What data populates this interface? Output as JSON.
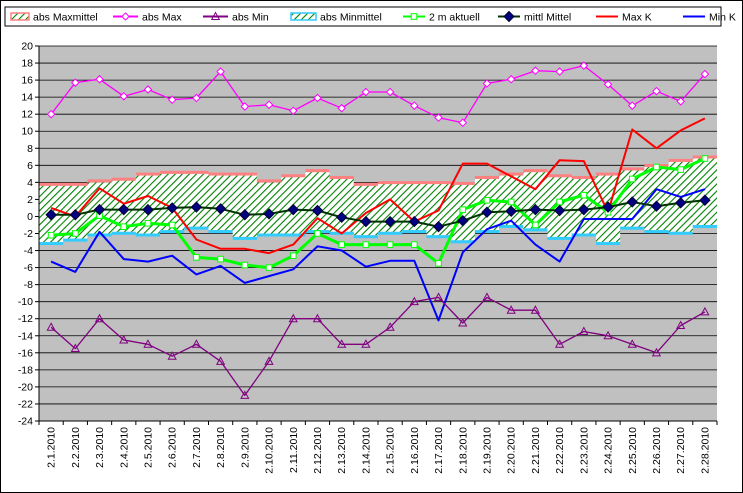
{
  "chart_data": {
    "type": "line",
    "title": "",
    "xlabel": "",
    "ylabel": "",
    "ylim": [
      -24,
      20
    ],
    "ytick_step": 2,
    "grid": true,
    "legend_placement": "top",
    "plot_background": "#c0c0c0",
    "categories": [
      "2.1.2010",
      "2.2.2010",
      "2.3.2010",
      "2.4.2010",
      "2.5.2010",
      "2.6.2010",
      "2.7.2010",
      "2.8.2010",
      "2.9.2010",
      "2.10.2010",
      "2.11.2010",
      "2.12.2010",
      "2.13.2010",
      "2.14.2010",
      "2.15.2010",
      "2.16.2010",
      "2.17.2010",
      "2.18.2010",
      "2.19.2010",
      "2.20.2010",
      "2.21.2010",
      "2.22.2010",
      "2.23.2010",
      "2.24.2010",
      "2.25.2010",
      "2.26.2010",
      "2.27.2010",
      "2.28.2010"
    ],
    "series": [
      {
        "name": "abs Maxmittel",
        "kind": "band-top",
        "color": "#ff8080",
        "values": [
          3.6,
          3.6,
          4.0,
          4.2,
          4.8,
          5.0,
          5.0,
          4.8,
          4.8,
          4.0,
          4.6,
          5.2,
          4.4,
          3.6,
          3.8,
          3.8,
          3.8,
          3.7,
          4.4,
          4.8,
          5.2,
          4.6,
          4.4,
          4.8,
          5.4,
          5.8,
          6.4,
          6.8
        ]
      },
      {
        "name": "abs Max",
        "kind": "line",
        "marker": "diamond-open",
        "color": "#ff00ff",
        "values": [
          12,
          15.7,
          16.1,
          14.1,
          14.9,
          13.7,
          13.9,
          17.0,
          12.9,
          13.1,
          12.4,
          13.9,
          12.7,
          14.6,
          14.6,
          13.0,
          11.6,
          11.0,
          15.6,
          16.1,
          17.1,
          17.0,
          17.7,
          15.5,
          13.0,
          14.7,
          13.5,
          16.7
        ]
      },
      {
        "name": "abs Min",
        "kind": "line",
        "marker": "triangle-open",
        "color": "#800080",
        "values": [
          -13,
          -15.5,
          -12,
          -14.5,
          -15,
          -16.4,
          -15,
          -17,
          -21,
          -17,
          -12,
          -12,
          -15,
          -15,
          -13,
          -10,
          -9.5,
          -12.5,
          -9.5,
          -11,
          -11,
          -15,
          -13.5,
          -14,
          -15,
          -16,
          -12.8,
          -11.2
        ]
      },
      {
        "name": "abs Minmittel",
        "kind": "band-bottom",
        "color": "#33ccff",
        "values": [
          -3.0,
          -2.6,
          -2.0,
          -1.8,
          -2.0,
          -1.6,
          -1.2,
          -1.6,
          -2.4,
          -2.0,
          -2.0,
          -1.6,
          -1.8,
          -2.2,
          -1.8,
          -1.6,
          -2.2,
          -2.8,
          -1.6,
          -1.0,
          -1.4,
          -2.4,
          -2.0,
          -3.0,
          -1.2,
          -1.6,
          -1.8,
          -1.0
        ]
      },
      {
        "name": "2 m aktuell",
        "kind": "line",
        "marker": "square-open",
        "color": "#00ff00",
        "values": [
          -2.2,
          -2.0,
          0.1,
          -1.2,
          -0.8,
          -1.0,
          -4.8,
          -5.0,
          -5.7,
          -6.0,
          -4.6,
          -2.0,
          -3.3,
          -3.3,
          -3.3,
          -3.3,
          -5.5,
          0.8,
          1.9,
          1.7,
          -1.0,
          1.7,
          2.5,
          0.5,
          4.4,
          5.8,
          5.5,
          6.8
        ]
      },
      {
        "name": "mittl Mittel",
        "kind": "line",
        "marker": "diamond-filled",
        "color": "#003300",
        "values": [
          0.2,
          0.2,
          0.8,
          0.8,
          0.8,
          1.0,
          1.1,
          0.9,
          0.2,
          0.3,
          0.8,
          0.7,
          -0.1,
          -0.6,
          -0.6,
          -0.6,
          -1.2,
          -0.5,
          0.5,
          0.6,
          0.8,
          0.7,
          0.8,
          1.1,
          1.7,
          1.2,
          1.6,
          1.9
        ]
      },
      {
        "name": "Max K",
        "kind": "line",
        "marker": "none",
        "color": "#ff0000",
        "values": [
          1.0,
          0.0,
          3.3,
          1.5,
          2.4,
          1.0,
          -2.7,
          -3.8,
          -3.8,
          -4.3,
          -3.3,
          -0.2,
          -2.0,
          0.4,
          2.0,
          -0.6,
          0.7,
          6.2,
          6.2,
          4.7,
          3.2,
          6.6,
          6.5,
          0.5,
          10.2,
          8.0,
          10.1,
          11.5
        ]
      },
      {
        "name": "Min K",
        "kind": "line",
        "marker": "none",
        "color": "#0000ff",
        "values": [
          -5.3,
          -6.5,
          -1.8,
          -5.0,
          -5.3,
          -4.6,
          -6.8,
          -5.8,
          -7.8,
          -7.0,
          -6.2,
          -3.5,
          -4.0,
          -5.9,
          -5.2,
          -5.2,
          -12.2,
          -4.2,
          -1.5,
          -0.5,
          -3.3,
          -5.3,
          -0.3,
          -0.3,
          -0.3,
          3.2,
          2.3,
          3.2
        ]
      }
    ]
  }
}
